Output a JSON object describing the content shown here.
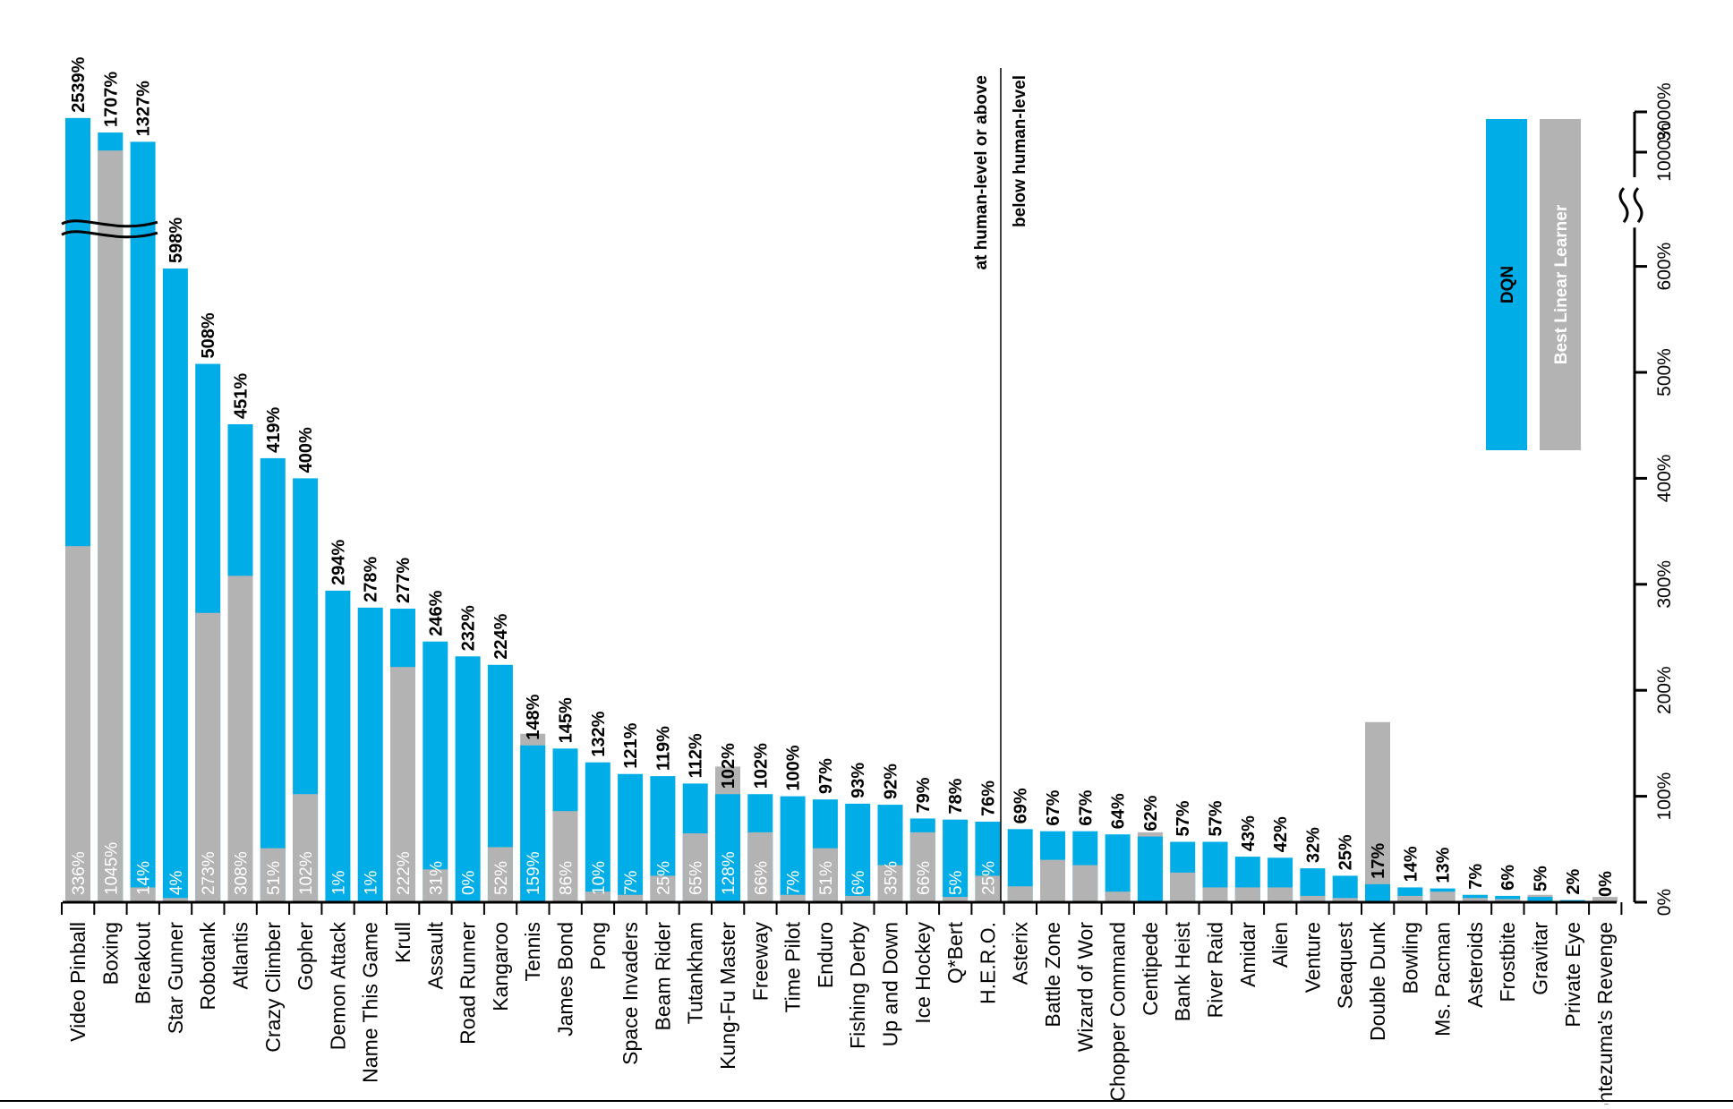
{
  "chart_data": {
    "type": "bar",
    "orientation": "rotated",
    "categories": [
      "Video Pinball",
      "Boxing",
      "Breakout",
      "Star Gunner",
      "Robotank",
      "Atlantis",
      "Crazy Climber",
      "Gopher",
      "Demon Attack",
      "Name This Game",
      "Krull",
      "Assault",
      "Road Runner",
      "Kangaroo",
      "Tennis",
      "James Bond",
      "Pong",
      "Space Invaders",
      "Beam Rider",
      "Tutankham",
      "Kung-Fu Master",
      "Freeway",
      "Time Pilot",
      "Enduro",
      "Fishing Derby",
      "Up and Down",
      "Ice Hockey",
      "Q*Bert",
      "H.E.R.O.",
      "Asterix",
      "Battle Zone",
      "Wizard of Wor",
      "Chopper Command",
      "Centipede",
      "Bank Heist",
      "River Raid",
      "Amidar",
      "Alien",
      "Venture",
      "Seaquest",
      "Double Dunk",
      "Bowling",
      "Ms. Pacman",
      "Asteroids",
      "Frostbite",
      "Gravitar",
      "Private Eye",
      "Montezuma's Revenge"
    ],
    "series": [
      {
        "name": "DQN",
        "color": "#00ade6",
        "values": [
          2539,
          1707,
          1327,
          598,
          508,
          451,
          419,
          400,
          294,
          278,
          277,
          246,
          232,
          224,
          148,
          145,
          132,
          121,
          119,
          112,
          102,
          102,
          100,
          97,
          93,
          92,
          79,
          78,
          76,
          69,
          67,
          67,
          64,
          62,
          57,
          57,
          43,
          42,
          32,
          25,
          17,
          14,
          13,
          7,
          6,
          5,
          2,
          0
        ],
        "labels": [
          "2539%",
          "1707%",
          "1327%",
          "598%",
          "508%",
          "451%",
          "419%",
          "400%",
          "294%",
          "278%",
          "277%",
          "246%",
          "232%",
          "224%",
          "148%",
          "145%",
          "132%",
          "121%",
          "119%",
          "112%",
          "102%",
          "102%",
          "100%",
          "97%",
          "93%",
          "92%",
          "79%",
          "78%",
          "76%",
          "69%",
          "67%",
          "67%",
          "64%",
          "62%",
          "57%",
          "57%",
          "43%",
          "42%",
          "32%",
          "25%",
          "17%",
          "14%",
          "13%",
          "7%",
          "6%",
          "5%",
          "2%",
          "0%"
        ]
      },
      {
        "name": "Best Linear Learner",
        "color": "#b3b3b3",
        "values": [
          336,
          1045,
          14,
          4,
          273,
          308,
          51,
          102,
          1,
          1,
          222,
          31,
          0,
          52,
          159,
          86,
          10,
          7,
          25,
          65,
          128,
          66,
          7,
          51,
          6,
          35,
          66,
          5,
          25,
          15,
          40,
          35,
          10,
          66,
          28,
          14,
          14,
          14,
          6,
          4,
          170,
          6,
          10,
          4,
          3,
          7,
          1,
          5
        ],
        "labels": [
          "336%",
          "1045%",
          "14%",
          "4%",
          "273%",
          "308%",
          "51%",
          "102%",
          "1%",
          "1%",
          "222%",
          "31%",
          "0%",
          "52%",
          "159%",
          "86%",
          "10%",
          "7%",
          "25%",
          "65%",
          "128%",
          "66%",
          "7%",
          "51%",
          "6%",
          "35%",
          "66%",
          "5%",
          "25%",
          "",
          "",
          "",
          "",
          "",
          "",
          "",
          "",
          "",
          "",
          "",
          "",
          "",
          "",
          "",
          "",
          "",
          "",
          ""
        ]
      }
    ],
    "axis": {
      "ticks": [
        "0%",
        "100%",
        "200%",
        "300%",
        "400%",
        "500%",
        "600%",
        "1000%",
        "3000%"
      ]
    },
    "regions": {
      "above": "at human-level or above",
      "below": "below human-level"
    },
    "legend": {
      "dqn": "DQN",
      "blr": "Best Linear Learner",
      "placement": "top-right"
    }
  }
}
